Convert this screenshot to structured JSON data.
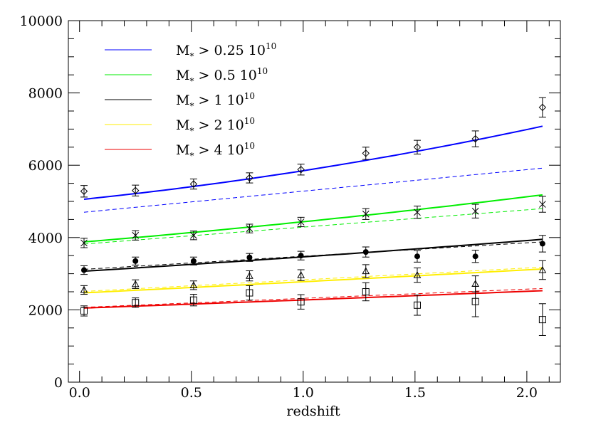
{
  "chart_data": {
    "type": "line",
    "title": "",
    "xlabel": "redshift",
    "ylabel": "",
    "xlim": [
      -0.05,
      2.15
    ],
    "ylim": [
      0,
      10000
    ],
    "x_ticks": [
      0.0,
      0.5,
      1.0,
      1.5,
      2.0
    ],
    "x_tick_labels": [
      "0.0",
      "0.5",
      "1.0",
      "1.5",
      "2.0"
    ],
    "y_ticks": [
      0,
      2000,
      4000,
      6000,
      8000,
      10000
    ],
    "y_tick_labels": [
      "0",
      "2000",
      "4000",
      "6000",
      "8000",
      "10000"
    ],
    "grid": false,
    "legend_placement": "top-left",
    "series": [
      {
        "key": "m025",
        "name": "M* > 0.25 10^10",
        "legend_text": "M",
        "legend_sub": "*",
        "legend_mid": "> 0.25 10",
        "legend_sup": "10",
        "color": "#0000ff",
        "marker": "diamond",
        "model_x": [
          0.02,
          2.07
        ],
        "model_y": [
          5060,
          7080
        ],
        "model_curvature": 0.35,
        "dashed_x": [
          0.02,
          2.07
        ],
        "dashed_y": [
          4700,
          5920
        ],
        "points_x": [
          0.02,
          0.25,
          0.51,
          0.76,
          0.99,
          1.28,
          1.51,
          1.77,
          2.07
        ],
        "points_y": [
          5280,
          5300,
          5480,
          5650,
          5880,
          6330,
          6500,
          6730,
          7600
        ],
        "errors": [
          160,
          150,
          140,
          140,
          150,
          170,
          190,
          220,
          270
        ]
      },
      {
        "key": "m05",
        "name": "M* > 0.5 10^10",
        "legend_text": "M",
        "legend_sub": "*",
        "legend_mid": "> 0.5 10",
        "legend_sup": "10",
        "color": "#00ee00",
        "marker": "cross",
        "model_x": [
          0.02,
          2.07
        ],
        "model_y": [
          3880,
          5180
        ],
        "model_curvature": 0.2,
        "dashed_x": [
          0.02,
          2.07
        ],
        "dashed_y": [
          3820,
          4800
        ],
        "points_x": [
          0.02,
          0.25,
          0.51,
          0.76,
          0.99,
          1.28,
          1.51,
          1.77,
          2.07
        ],
        "points_y": [
          3850,
          4060,
          4060,
          4250,
          4430,
          4650,
          4700,
          4730,
          4920
        ],
        "errors": [
          130,
          130,
          120,
          120,
          130,
          150,
          170,
          190,
          220
        ]
      },
      {
        "key": "m1",
        "name": "M* > 1 10^10",
        "legend_text": "M",
        "legend_sub": "*",
        "legend_mid": "> 1 10",
        "legend_sup": "10",
        "color": "#000000",
        "marker": "filled-circle",
        "model_x": [
          0.02,
          2.07
        ],
        "model_y": [
          3070,
          3950
        ],
        "model_curvature": 0.12,
        "dashed_x": [
          0.02,
          2.07
        ],
        "dashed_y": [
          3120,
          3880
        ],
        "points_x": [
          0.02,
          0.25,
          0.51,
          0.76,
          0.99,
          1.28,
          1.51,
          1.77,
          2.07
        ],
        "points_y": [
          3100,
          3350,
          3350,
          3450,
          3500,
          3600,
          3480,
          3480,
          3830
        ],
        "errors": [
          120,
          110,
          110,
          110,
          120,
          140,
          160,
          170,
          230
        ]
      },
      {
        "key": "m2",
        "name": "M* > 2 10^10",
        "legend_text": "M",
        "legend_sub": "*",
        "legend_mid": "> 2 10",
        "legend_sup": "10",
        "color": "#ffee00",
        "marker": "triangle",
        "model_x": [
          0.02,
          2.07
        ],
        "model_y": [
          2470,
          3130
        ],
        "model_curvature": 0.05,
        "dashed_x": [
          0.02,
          2.07
        ],
        "dashed_y": [
          2510,
          3180
        ],
        "points_x": [
          0.02,
          0.25,
          0.51,
          0.76,
          0.99,
          1.28,
          1.51,
          1.77,
          2.07
        ],
        "points_y": [
          2550,
          2710,
          2680,
          2940,
          2960,
          3070,
          2960,
          2720,
          3100
        ],
        "errors": [
          120,
          120,
          120,
          140,
          150,
          180,
          200,
          220,
          260
        ]
      },
      {
        "key": "m4",
        "name": "M* > 4 10^10",
        "legend_text": "M",
        "legend_sub": "*",
        "legend_mid": "> 4 10",
        "legend_sup": "10",
        "color": "#ee0000",
        "marker": "square",
        "model_x": [
          0.02,
          2.07
        ],
        "model_y": [
          2050,
          2530
        ],
        "model_curvature": 0.05,
        "dashed_x": [
          0.02,
          2.07
        ],
        "dashed_y": [
          2070,
          2590
        ],
        "points_x": [
          0.02,
          0.25,
          0.51,
          0.76,
          0.99,
          1.28,
          1.51,
          1.77,
          2.07
        ],
        "points_y": [
          1970,
          2200,
          2270,
          2470,
          2220,
          2500,
          2130,
          2230,
          1730
        ],
        "errors": [
          140,
          130,
          160,
          200,
          200,
          250,
          280,
          420,
          440
        ]
      }
    ]
  }
}
